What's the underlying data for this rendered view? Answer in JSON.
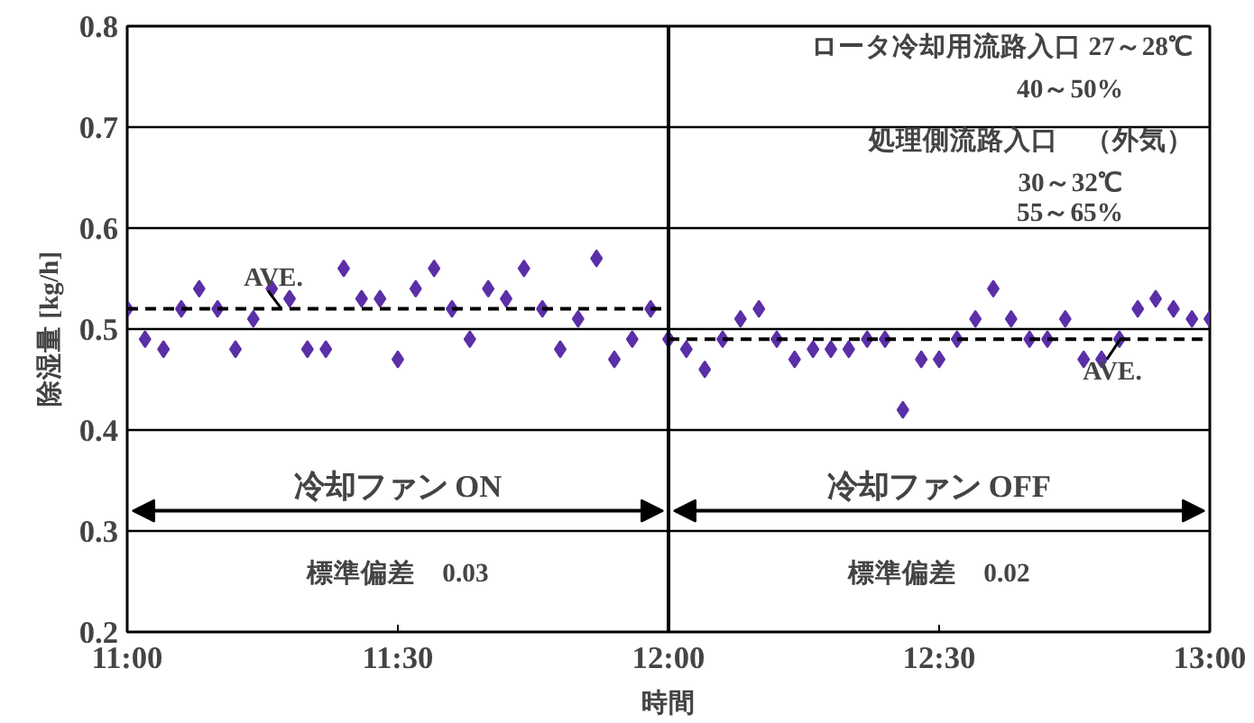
{
  "chart_data": {
    "type": "scatter",
    "xlabel": "時間",
    "ylabel": "除湿量 [kg/h]",
    "x": [
      11,
      11.033,
      11.067,
      11.1,
      11.133,
      11.167,
      11.2,
      11.233,
      11.267,
      11.3,
      11.333,
      11.367,
      11.4,
      11.433,
      11.467,
      11.5,
      11.533,
      11.567,
      11.6,
      11.633,
      11.667,
      11.7,
      11.733,
      11.767,
      11.8,
      11.833,
      11.867,
      11.9,
      11.933,
      11.967,
      12,
      12.033,
      12.067,
      12.1,
      12.133,
      12.167,
      12.2,
      12.233,
      12.267,
      12.3,
      12.333,
      12.367,
      12.4,
      12.433,
      12.467,
      12.5,
      12.533,
      12.567,
      12.6,
      12.633,
      12.667,
      12.7,
      12.733,
      12.767,
      12.8,
      12.833,
      12.867,
      12.9,
      12.933,
      12.967,
      13
    ],
    "series": [
      {
        "color": "#5b2fa8",
        "marker": "diamond",
        "values": [
          0.52,
          0.49,
          0.48,
          0.52,
          0.54,
          0.52,
          0.48,
          0.51,
          0.54,
          0.53,
          0.48,
          0.48,
          0.56,
          0.53,
          0.53,
          0.47,
          0.54,
          0.56,
          0.52,
          0.49,
          0.54,
          0.53,
          0.56,
          0.52,
          0.48,
          0.51,
          0.57,
          0.47,
          0.49,
          0.52,
          0.49,
          0.48,
          0.46,
          0.49,
          0.51,
          0.52,
          0.49,
          0.47,
          0.48,
          0.48,
          0.48,
          0.49,
          0.49,
          0.42,
          0.47,
          0.47,
          0.49,
          0.51,
          0.54,
          0.51,
          0.49,
          0.49,
          0.51,
          0.47,
          0.47,
          0.49,
          0.52,
          0.53,
          0.52,
          0.51,
          0.51
        ]
      },
      {
        "type": "line",
        "color": "#000000",
        "line_style": "dashed",
        "marker": "none",
        "x": [
          11,
          12
        ],
        "values": [
          0.52,
          0.52
        ]
      },
      {
        "type": "line",
        "color": "#000000",
        "line_style": "dashed",
        "marker": "none",
        "x": [
          12,
          13
        ],
        "values": [
          0.49,
          0.49
        ]
      }
    ],
    "xlim": [
      11,
      13
    ],
    "xticks": [
      {
        "value": 11,
        "label": "11:00"
      },
      {
        "value": 11.5,
        "label": "11:30"
      },
      {
        "value": 12,
        "label": "12:00"
      },
      {
        "value": 12.5,
        "label": "12:30"
      },
      {
        "value": 13,
        "label": "13:00"
      }
    ],
    "ylim": [
      0.2,
      0.8
    ],
    "yticks": [
      0.2,
      0.3,
      0.4,
      0.5,
      0.6,
      0.7,
      0.8
    ],
    "grid": "y",
    "ref_lines": [
      {
        "axis": "x",
        "value": 12,
        "label": null,
        "color": "#000000"
      }
    ],
    "annotations": [
      "ロータ冷却用流路入口 27～28℃",
      "40～50%",
      "処理側流路入口　（外気）",
      "30～32℃",
      "55～65%",
      "冷却ファン ON",
      "冷却ファン OFF",
      "標準偏差　0.03",
      "標準偏差　0.02",
      {
        "text": "AVE.",
        "x": 11.27,
        "y": 0.52
      },
      {
        "text": "AVE.",
        "x": 12.82,
        "y": 0.49
      }
    ]
  }
}
